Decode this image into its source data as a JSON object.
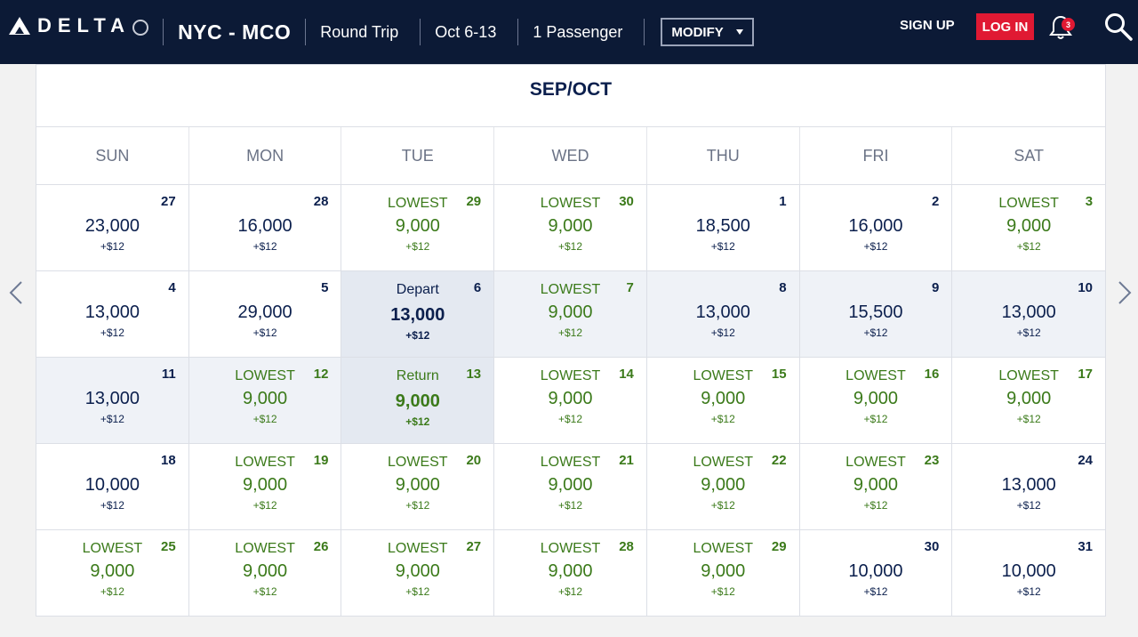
{
  "header": {
    "brand": "DELTA",
    "route": "NYC - MCO",
    "trip_type": "Round Trip",
    "dates": "Oct 6-13",
    "passengers": "1 Passenger",
    "modify_label": "MODIFY",
    "signup_label": "SIGN UP",
    "login_label": "LOG IN",
    "notification_count": "3"
  },
  "calendar": {
    "month_title": "SEP/OCT",
    "days_of_week": [
      "SUN",
      "MON",
      "TUE",
      "WED",
      "THU",
      "FRI",
      "SAT"
    ],
    "weeks": [
      [
        {
          "date": "27",
          "label": "",
          "miles": "23,000",
          "tax": "+$12",
          "lowest": false,
          "state": ""
        },
        {
          "date": "28",
          "label": "",
          "miles": "16,000",
          "tax": "+$12",
          "lowest": false,
          "state": ""
        },
        {
          "date": "29",
          "label": "LOWEST",
          "miles": "9,000",
          "tax": "+$12",
          "lowest": true,
          "state": ""
        },
        {
          "date": "30",
          "label": "LOWEST",
          "miles": "9,000",
          "tax": "+$12",
          "lowest": true,
          "state": ""
        },
        {
          "date": "1",
          "label": "",
          "miles": "18,500",
          "tax": "+$12",
          "lowest": false,
          "state": ""
        },
        {
          "date": "2",
          "label": "",
          "miles": "16,000",
          "tax": "+$12",
          "lowest": false,
          "state": ""
        },
        {
          "date": "3",
          "label": "LOWEST",
          "miles": "9,000",
          "tax": "+$12",
          "lowest": true,
          "state": ""
        }
      ],
      [
        {
          "date": "4",
          "label": "",
          "miles": "13,000",
          "tax": "+$12",
          "lowest": false,
          "state": ""
        },
        {
          "date": "5",
          "label": "",
          "miles": "29,000",
          "tax": "+$12",
          "lowest": false,
          "state": ""
        },
        {
          "date": "6",
          "label": "Depart",
          "miles": "13,000",
          "tax": "+$12",
          "lowest": false,
          "state": "selected"
        },
        {
          "date": "7",
          "label": "LOWEST",
          "miles": "9,000",
          "tax": "+$12",
          "lowest": true,
          "state": "range"
        },
        {
          "date": "8",
          "label": "",
          "miles": "13,000",
          "tax": "+$12",
          "lowest": false,
          "state": "range"
        },
        {
          "date": "9",
          "label": "",
          "miles": "15,500",
          "tax": "+$12",
          "lowest": false,
          "state": "range"
        },
        {
          "date": "10",
          "label": "",
          "miles": "13,000",
          "tax": "+$12",
          "lowest": false,
          "state": "range"
        }
      ],
      [
        {
          "date": "11",
          "label": "",
          "miles": "13,000",
          "tax": "+$12",
          "lowest": false,
          "state": "range"
        },
        {
          "date": "12",
          "label": "LOWEST",
          "miles": "9,000",
          "tax": "+$12",
          "lowest": true,
          "state": "range"
        },
        {
          "date": "13",
          "label": "Return",
          "miles": "9,000",
          "tax": "+$12",
          "lowest": true,
          "state": "selected"
        },
        {
          "date": "14",
          "label": "LOWEST",
          "miles": "9,000",
          "tax": "+$12",
          "lowest": true,
          "state": ""
        },
        {
          "date": "15",
          "label": "LOWEST",
          "miles": "9,000",
          "tax": "+$12",
          "lowest": true,
          "state": ""
        },
        {
          "date": "16",
          "label": "LOWEST",
          "miles": "9,000",
          "tax": "+$12",
          "lowest": true,
          "state": ""
        },
        {
          "date": "17",
          "label": "LOWEST",
          "miles": "9,000",
          "tax": "+$12",
          "lowest": true,
          "state": ""
        }
      ],
      [
        {
          "date": "18",
          "label": "",
          "miles": "10,000",
          "tax": "+$12",
          "lowest": false,
          "state": ""
        },
        {
          "date": "19",
          "label": "LOWEST",
          "miles": "9,000",
          "tax": "+$12",
          "lowest": true,
          "state": ""
        },
        {
          "date": "20",
          "label": "LOWEST",
          "miles": "9,000",
          "tax": "+$12",
          "lowest": true,
          "state": ""
        },
        {
          "date": "21",
          "label": "LOWEST",
          "miles": "9,000",
          "tax": "+$12",
          "lowest": true,
          "state": ""
        },
        {
          "date": "22",
          "label": "LOWEST",
          "miles": "9,000",
          "tax": "+$12",
          "lowest": true,
          "state": ""
        },
        {
          "date": "23",
          "label": "LOWEST",
          "miles": "9,000",
          "tax": "+$12",
          "lowest": true,
          "state": ""
        },
        {
          "date": "24",
          "label": "",
          "miles": "13,000",
          "tax": "+$12",
          "lowest": false,
          "state": ""
        }
      ],
      [
        {
          "date": "25",
          "label": "LOWEST",
          "miles": "9,000",
          "tax": "+$12",
          "lowest": true,
          "state": ""
        },
        {
          "date": "26",
          "label": "LOWEST",
          "miles": "9,000",
          "tax": "+$12",
          "lowest": true,
          "state": ""
        },
        {
          "date": "27",
          "label": "LOWEST",
          "miles": "9,000",
          "tax": "+$12",
          "lowest": true,
          "state": ""
        },
        {
          "date": "28",
          "label": "LOWEST",
          "miles": "9,000",
          "tax": "+$12",
          "lowest": true,
          "state": ""
        },
        {
          "date": "29",
          "label": "LOWEST",
          "miles": "9,000",
          "tax": "+$12",
          "lowest": true,
          "state": ""
        },
        {
          "date": "30",
          "label": "",
          "miles": "10,000",
          "tax": "+$12",
          "lowest": false,
          "state": ""
        },
        {
          "date": "31",
          "label": "",
          "miles": "10,000",
          "tax": "+$12",
          "lowest": false,
          "state": ""
        }
      ]
    ]
  },
  "icons": {
    "prev": "chevron-left-icon",
    "next": "chevron-right-icon",
    "bell": "bell-icon",
    "search": "search-icon"
  },
  "colors": {
    "header_bg": "#0c1a36",
    "navy": "#0b1f4d",
    "lowest_green": "#3b7a1a",
    "login_red": "#e01933",
    "selected_bg": "#e4e9f1",
    "range_bg": "#eff2f7"
  }
}
